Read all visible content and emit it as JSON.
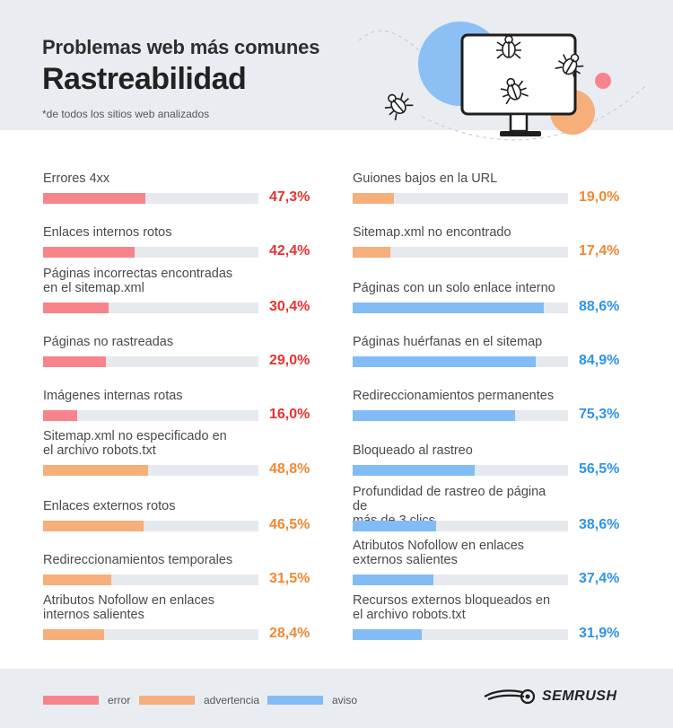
{
  "header": {
    "subtitle": "Problemas web más comunes",
    "title": "Rastreabilidad",
    "note": "*de todos los sitios web analizados"
  },
  "colors": {
    "error": "#f8848b",
    "advertencia": "#f6ae7a",
    "aviso": "#82bcf6",
    "error_text": "#e8312e",
    "advertencia_text": "#f08833",
    "aviso_text": "#2f93ea",
    "track": "#e6e9ee"
  },
  "chart_data": {
    "type": "bar",
    "orientation": "horizontal",
    "unit": "%",
    "xlim": [
      0,
      100
    ],
    "columns": [
      [
        {
          "label": "Errores 4xx",
          "value": 47.3,
          "display": "47,3%",
          "severity": "error"
        },
        {
          "label": "Enlaces internos rotos",
          "value": 42.4,
          "display": "42,4%",
          "severity": "error"
        },
        {
          "label": "Páginas incorrectas encontradas\nen el sitemap.xml",
          "value": 30.4,
          "display": "30,4%",
          "severity": "error"
        },
        {
          "label": "Páginas no rastreadas",
          "value": 29.0,
          "display": "29,0%",
          "severity": "error"
        },
        {
          "label": "Imágenes internas rotas",
          "value": 16.0,
          "display": "16,0%",
          "severity": "error"
        },
        {
          "label": "Sitemap.xml no especificado en\nel archivo robots.txt",
          "value": 48.8,
          "display": "48,8%",
          "severity": "advertencia"
        },
        {
          "label": "Enlaces externos rotos",
          "value": 46.5,
          "display": "46,5%",
          "severity": "advertencia"
        },
        {
          "label": "Redireccionamientos temporales",
          "value": 31.5,
          "display": "31,5%",
          "severity": "advertencia"
        },
        {
          "label": "Atributos Nofollow en enlaces\ninternos salientes",
          "value": 28.4,
          "display": "28,4%",
          "severity": "advertencia"
        }
      ],
      [
        {
          "label": "Guiones bajos en la URL",
          "value": 19.0,
          "display": "19,0%",
          "severity": "advertencia"
        },
        {
          "label": "Sitemap.xml no encontrado",
          "value": 17.4,
          "display": "17,4%",
          "severity": "advertencia"
        },
        {
          "label": "Páginas con un solo enlace interno",
          "value": 88.6,
          "display": "88,6%",
          "severity": "aviso"
        },
        {
          "label": "Páginas huérfanas en el sitemap",
          "value": 84.9,
          "display": "84,9%",
          "severity": "aviso"
        },
        {
          "label": "Redireccionamientos permanentes",
          "value": 75.3,
          "display": "75,3%",
          "severity": "aviso"
        },
        {
          "label": "Bloqueado al rastreo",
          "value": 56.5,
          "display": "56,5%",
          "severity": "aviso"
        },
        {
          "label": "Profundidad de rastreo de página de\nmás de 3 clics",
          "value": 38.6,
          "display": "38,6%",
          "severity": "aviso"
        },
        {
          "label": "Atributos Nofollow en enlaces\nexternos salientes",
          "value": 37.4,
          "display": "37,4%",
          "severity": "aviso"
        },
        {
          "label": "Recursos externos bloqueados en\nel archivo robots.txt",
          "value": 31.9,
          "display": "31,9%",
          "severity": "aviso"
        }
      ]
    ],
    "legend": [
      {
        "key": "error",
        "label": "error"
      },
      {
        "key": "advertencia",
        "label": "advertencia"
      },
      {
        "key": "aviso",
        "label": "aviso"
      }
    ],
    "legend_position": "bottom-left"
  },
  "footer": {
    "brand": "SEMRUSH",
    "brand_icon": "semrush-fireball-icon"
  },
  "illustration": {
    "icons": [
      "computer-monitor-icon",
      "bug-icon"
    ]
  }
}
